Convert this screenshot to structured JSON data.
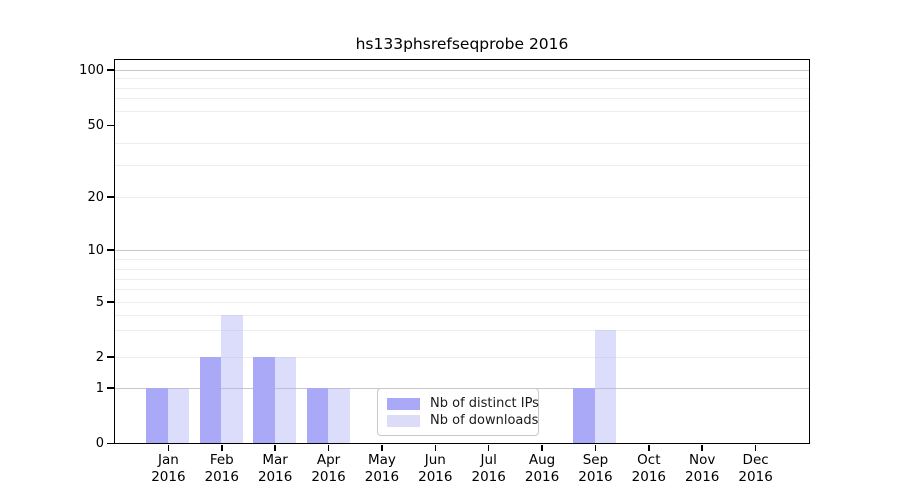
{
  "title": "hs133phsrefseqprobe 2016",
  "chart_data": {
    "type": "bar",
    "title": "hs133phsrefseqprobe 2016",
    "categories": [
      "Jan 2016",
      "Feb 2016",
      "Mar 2016",
      "Apr 2016",
      "May 2016",
      "Jun 2016",
      "Jul 2016",
      "Aug 2016",
      "Sep 2016",
      "Oct 2016",
      "Nov 2016",
      "Dec 2016"
    ],
    "x_tick_months": [
      "Jan",
      "Feb",
      "Mar",
      "Apr",
      "May",
      "Jun",
      "Jul",
      "Aug",
      "Sep",
      "Oct",
      "Nov",
      "Dec"
    ],
    "x_tick_year": "2016",
    "series": [
      {
        "name": "Nb of distinct IPs",
        "color": "#a9a9f8",
        "values": [
          1,
          2,
          2,
          1,
          0,
          0,
          0,
          0,
          1,
          0,
          0,
          0
        ]
      },
      {
        "name": "Nb of downloads",
        "color": "#dcdcf9",
        "values": [
          1,
          4,
          2,
          1,
          0,
          0,
          0,
          0,
          3,
          0,
          0,
          0
        ]
      }
    ],
    "xlabel": "",
    "ylabel": "",
    "yscale": "symlog",
    "ylim": [
      0,
      115
    ],
    "ytick_labels": [
      0,
      1,
      2,
      5,
      10,
      20,
      50,
      100
    ],
    "grid": {
      "orientation": "horizontal",
      "major_values": [
        1,
        10,
        100
      ],
      "minor_values": [
        2,
        3,
        4,
        5,
        6,
        7,
        8,
        9,
        20,
        30,
        40,
        60,
        70,
        80,
        90
      ],
      "major_color": "#c8c8c8",
      "minor_color": "#ededed"
    },
    "legend": {
      "position": "lower center",
      "items": [
        "Nb of distinct IPs",
        "Nb of downloads"
      ]
    }
  },
  "colors": {
    "background": "#ffffff",
    "axis": "#000000",
    "text": "#000000",
    "legend_border": "#c9c9c9"
  }
}
